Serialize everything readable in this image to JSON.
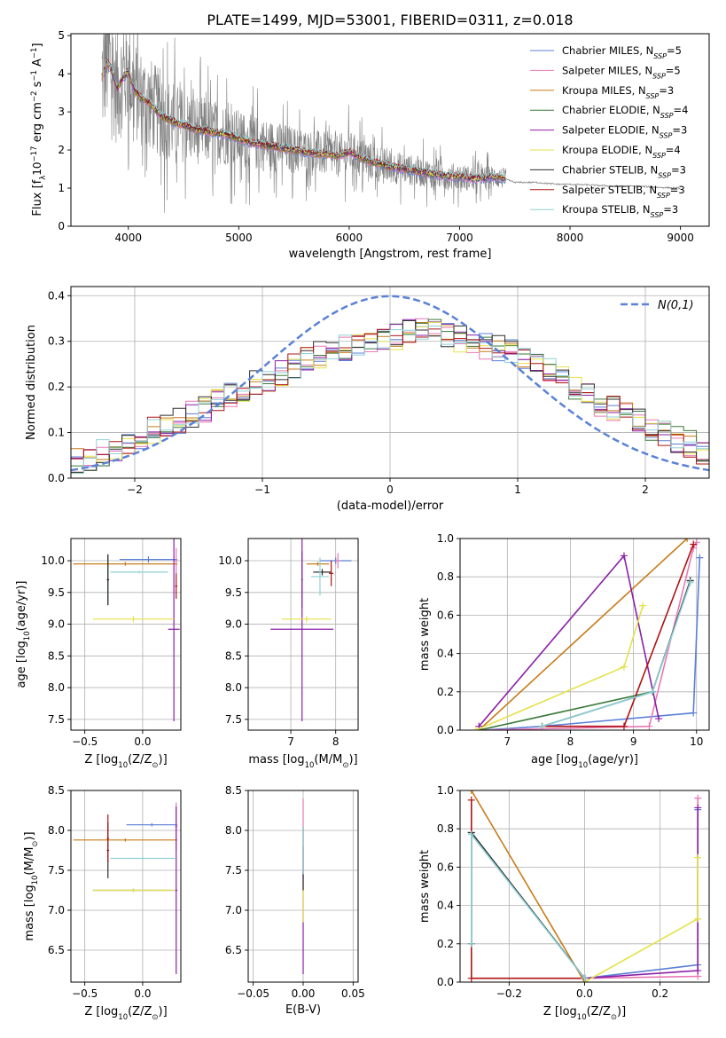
{
  "figure": {
    "title": "PLATE=1499, MJD=53001, FIBERID=0311, z=0.018"
  },
  "colors": {
    "Chabrier MILES": "#5b7fd6",
    "Salpeter MILES": "#e879b6",
    "Kroupa MILES": "#c77c1a",
    "Chabrier ELODIE": "#3a7a3a",
    "Salpeter ELODIE": "#8b1fa8",
    "Kroupa ELODIE": "#e5e14a",
    "Chabrier STELIB": "#2f2f2f",
    "Salpeter STELIB": "#b01212",
    "Kroupa STELIB": "#8fd1d6",
    "data": "#808080"
  },
  "chart_data": [
    {
      "id": "spectrum",
      "type": "line",
      "xlabel": "wavelength [Angstrom, rest frame]",
      "ylabel_parts": [
        "Flux [f",
        "λ",
        "10",
        "−17",
        " erg cm",
        "−2",
        " s",
        "−1",
        " A",
        "−1",
        "]"
      ],
      "xlim": [
        3480,
        9260
      ],
      "ylim": [
        0,
        5.05
      ],
      "xticks": [
        4000,
        5000,
        6000,
        7000,
        8000,
        9000
      ],
      "yticks": [
        0,
        1,
        2,
        3,
        4,
        5
      ],
      "legend": {
        "position": "top-right",
        "entries": [
          {
            "name": "Chabrier MILES",
            "n": "5"
          },
          {
            "name": "Salpeter MILES",
            "n": "5"
          },
          {
            "name": "Kroupa MILES",
            "n": "3"
          },
          {
            "name": "Chabrier ELODIE",
            "n": "4"
          },
          {
            "name": "Salpeter ELODIE",
            "n": "3"
          },
          {
            "name": "Kroupa ELODIE",
            "n": "4"
          },
          {
            "name": "Chabrier STELIB",
            "n": "3"
          },
          {
            "name": "Salpeter STELIB",
            "n": "3"
          },
          {
            "name": "Kroupa STELIB",
            "n": "3"
          }
        ]
      },
      "model_continuum": {
        "x": [
          3760,
          3800,
          3850,
          3900,
          3950,
          4000,
          4050,
          4100,
          4150,
          4200,
          4300,
          4400,
          4500,
          4600,
          4700,
          4800,
          4900,
          5000,
          5100,
          5200,
          5300,
          5400,
          5500,
          5600,
          5700,
          5800,
          5900,
          6000,
          6100,
          6200,
          6300,
          6400,
          6500,
          6600,
          6700,
          6800,
          6900,
          7000,
          7100,
          7200,
          7300,
          7400,
          7500,
          7600,
          7700,
          7800,
          7900,
          8000,
          8200,
          8400,
          8600,
          8800,
          9000
        ],
        "y": [
          3.9,
          4.3,
          4.1,
          3.6,
          3.9,
          4.05,
          3.6,
          3.4,
          3.3,
          3.2,
          2.9,
          2.75,
          2.65,
          2.55,
          2.5,
          2.45,
          2.4,
          2.3,
          2.2,
          2.15,
          2.1,
          2.05,
          2.0,
          1.95,
          1.9,
          1.9,
          1.85,
          1.95,
          1.8,
          1.7,
          1.6,
          1.55,
          1.5,
          1.45,
          1.4,
          1.35,
          1.3,
          1.3,
          1.25,
          1.25,
          1.3,
          1.25,
          1.15,
          1.15,
          1.15,
          1.12,
          1.1,
          1.1,
          1.08,
          1.05,
          1.05,
          1.02,
          1.0
        ]
      },
      "data_noise_envelope": {
        "x": [
          3760,
          4000,
          4500,
          5000,
          5500,
          6000,
          6500,
          7000,
          7420
        ],
        "amplitude": [
          2.5,
          2.0,
          1.4,
          1.1,
          0.9,
          0.8,
          0.6,
          0.5,
          0.4
        ]
      }
    },
    {
      "id": "residual-histogram",
      "type": "line",
      "xlabel": "(data-model)/error",
      "ylabel": "Normed distribution",
      "xlim": [
        -2.5,
        2.5
      ],
      "ylim": [
        0,
        0.42
      ],
      "xticks": [
        -2,
        -1,
        0,
        1,
        2
      ],
      "xticklabels": [
        "−2",
        "−1",
        "0",
        "1",
        "2"
      ],
      "yticks": [
        0.0,
        0.1,
        0.2,
        0.3,
        0.4
      ],
      "yticklabels": [
        "0.0",
        "0.1",
        "0.2",
        "0.3",
        "0.4"
      ],
      "legend": {
        "position": "top-right",
        "entry": "N(0,1)"
      },
      "bins": {
        "start": -2.5,
        "width": 0.1
      },
      "envelope": [
        0.035,
        0.045,
        0.055,
        0.06,
        0.075,
        0.09,
        0.105,
        0.11,
        0.125,
        0.14,
        0.15,
        0.165,
        0.18,
        0.195,
        0.21,
        0.22,
        0.23,
        0.245,
        0.26,
        0.27,
        0.28,
        0.285,
        0.29,
        0.295,
        0.3,
        0.31,
        0.32,
        0.33,
        0.325,
        0.315,
        0.305,
        0.3,
        0.29,
        0.285,
        0.275,
        0.265,
        0.25,
        0.235,
        0.22,
        0.2,
        0.185,
        0.165,
        0.155,
        0.145,
        0.13,
        0.11,
        0.1,
        0.085,
        0.075,
        0.06
      ]
    },
    {
      "id": "age-vs-Z",
      "type": "scatter",
      "xlabel_parts": [
        "Z [log",
        "10",
        "(Z/Z",
        "⊙",
        ")]"
      ],
      "ylabel_parts": [
        "age  [log",
        "10",
        "(age/yr)]"
      ],
      "xlim": [
        -0.62,
        0.33
      ],
      "ylim": [
        7.33,
        10.35
      ],
      "xticks": [
        -0.5,
        0.0
      ],
      "xticklabels": [
        "−0.5",
        "0.0"
      ],
      "yticks": [
        7.5,
        8.0,
        8.5,
        9.0,
        9.5,
        10.0
      ],
      "yticklabels": [
        "7.5",
        "8.0",
        "8.5",
        "9.0",
        "9.5",
        "10.0"
      ],
      "points": [
        {
          "series": "Chabrier MILES",
          "x": 0.05,
          "y": 10.02,
          "xerr": 0.25,
          "yerr": 0.05
        },
        {
          "series": "Salpeter MILES",
          "x": 0.29,
          "y": 10.0,
          "xerr": 0.01,
          "yerr": 0.2
        },
        {
          "series": "Kroupa MILES",
          "x": -0.15,
          "y": 9.95,
          "xerr": 0.45,
          "yerr": 0.03
        },
        {
          "series": "Chabrier ELODIE",
          "x": -0.3,
          "y": 9.7,
          "xerr": 0.01,
          "yerr": 0.4
        },
        {
          "series": "Salpeter ELODIE",
          "x": 0.27,
          "y": 8.92,
          "xerr": 0.05,
          "yerr": 1.45
        },
        {
          "series": "Kroupa ELODIE",
          "x": -0.08,
          "y": 9.08,
          "xerr": 0.35,
          "yerr": 0.05
        },
        {
          "series": "Chabrier STELIB",
          "x": -0.3,
          "y": 9.7,
          "xerr": 0.01,
          "yerr": 0.4
        },
        {
          "series": "Salpeter STELIB",
          "x": 0.29,
          "y": 9.6,
          "xerr": 0.01,
          "yerr": 0.2
        },
        {
          "series": "Kroupa STELIB",
          "x": -0.03,
          "y": 9.82,
          "xerr": 0.25,
          "yerr": 0.02
        }
      ]
    },
    {
      "id": "age-vs-mass",
      "type": "scatter",
      "xlabel_parts": [
        "mass [log",
        "10",
        "(M/M",
        "⊙",
        ")]"
      ],
      "xlim": [
        6.05,
        8.5
      ],
      "ylim": [
        7.33,
        10.35
      ],
      "xticks": [
        7,
        8
      ],
      "xticklabels": [
        "7",
        "8"
      ],
      "yticks": [
        7.5,
        8.0,
        8.5,
        9.0,
        9.5,
        10.0
      ],
      "yticklabels": [
        "7.5",
        "8.0",
        "8.5",
        "9.0",
        "9.5",
        "10.0"
      ],
      "points": [
        {
          "series": "Chabrier MILES",
          "x": 8.0,
          "y": 10.0,
          "xerr": 0.35,
          "yerr": 0.05
        },
        {
          "series": "Salpeter MILES",
          "x": 8.05,
          "y": 10.0,
          "xerr": 0.05,
          "yerr": 0.12
        },
        {
          "series": "Kroupa MILES",
          "x": 7.6,
          "y": 9.95,
          "xerr": 0.25,
          "yerr": 0.03
        },
        {
          "series": "Chabrier ELODIE",
          "x": 7.25,
          "y": 9.7,
          "xerr": 0.02,
          "yerr": 0.45
        },
        {
          "series": "Salpeter ELODIE",
          "x": 7.25,
          "y": 8.92,
          "xerr": 0.7,
          "yerr": 1.45
        },
        {
          "series": "Kroupa ELODIE",
          "x": 7.35,
          "y": 9.08,
          "xerr": 0.55,
          "yerr": 0.05
        },
        {
          "series": "Chabrier STELIB",
          "x": 7.7,
          "y": 9.82,
          "xerr": 0.2,
          "yerr": 0.05
        },
        {
          "series": "Salpeter STELIB",
          "x": 7.9,
          "y": 9.8,
          "xerr": 0.05,
          "yerr": 0.2
        },
        {
          "series": "Kroupa STELIB",
          "x": 7.65,
          "y": 9.75,
          "xerr": 0.2,
          "yerr": 0.3
        }
      ]
    },
    {
      "id": "mass-weight-vs-age",
      "type": "line",
      "xlabel_parts": [
        "age  [log",
        "10",
        "(age/yr)]"
      ],
      "ylabel": "mass weight",
      "xlim": [
        6.25,
        10.2
      ],
      "ylim": [
        0,
        1.0
      ],
      "xticks": [
        7,
        8,
        9,
        10
      ],
      "xticklabels": [
        "7",
        "8",
        "9",
        "10"
      ],
      "yticks": [
        0.0,
        0.2,
        0.4,
        0.6,
        0.8,
        1.0
      ],
      "yticklabels": [
        "0.0",
        "0.2",
        "0.4",
        "0.6",
        "0.8",
        "1.0"
      ],
      "series": [
        {
          "name": "Chabrier MILES",
          "x": [
            6.6,
            7.55,
            9.95,
            10.05
          ],
          "y": [
            0.0,
            0.02,
            0.09,
            0.9
          ]
        },
        {
          "name": "Salpeter MILES",
          "x": [
            6.6,
            9.25,
            9.95,
            10.0
          ],
          "y": [
            0.0,
            0.02,
            0.95,
            0.98
          ]
        },
        {
          "name": "Kroupa MILES",
          "x": [
            6.55,
            9.85
          ],
          "y": [
            0.0,
            1.0
          ]
        },
        {
          "name": "Chabrier ELODIE",
          "x": [
            6.55,
            9.3,
            9.9
          ],
          "y": [
            0.0,
            0.2,
            0.78
          ]
        },
        {
          "name": "Salpeter ELODIE",
          "x": [
            6.55,
            8.85,
            9.4
          ],
          "y": [
            0.02,
            0.91,
            0.06
          ]
        },
        {
          "name": "Kroupa ELODIE",
          "x": [
            6.5,
            8.85,
            9.15
          ],
          "y": [
            0.0,
            0.33,
            0.65
          ]
        },
        {
          "name": "Chabrier STELIB",
          "x": [
            7.55,
            9.3,
            9.9
          ],
          "y": [
            0.02,
            0.2,
            0.78
          ]
        },
        {
          "name": "Salpeter STELIB",
          "x": [
            7.55,
            8.85,
            9.95
          ],
          "y": [
            0.02,
            0.02,
            0.97
          ]
        },
        {
          "name": "Kroupa STELIB",
          "x": [
            7.55,
            9.3,
            9.9
          ],
          "y": [
            0.02,
            0.2,
            0.77
          ]
        }
      ]
    },
    {
      "id": "mass-vs-Z",
      "type": "scatter",
      "xlabel_parts": [
        "Z [log",
        "10",
        "(Z/Z",
        "⊙",
        ")]"
      ],
      "ylabel_parts": [
        "mass [log",
        "10",
        "(M/M",
        "⊙",
        ")]"
      ],
      "xlim": [
        -0.62,
        0.33
      ],
      "ylim": [
        6.1,
        8.5
      ],
      "xticks": [
        -0.5,
        0.0
      ],
      "xticklabels": [
        "−0.5",
        "0.0"
      ],
      "yticks": [
        6.5,
        7.0,
        7.5,
        8.0,
        8.5
      ],
      "yticklabels": [
        "6.5",
        "7.0",
        "7.5",
        "8.0",
        "8.5"
      ],
      "points": [
        {
          "series": "Chabrier MILES",
          "x": 0.08,
          "y": 8.07,
          "xerr": 0.22,
          "yerr": 0.02
        },
        {
          "series": "Salpeter MILES",
          "x": 0.29,
          "y": 8.05,
          "xerr": 0.01,
          "yerr": 0.3
        },
        {
          "series": "Kroupa MILES",
          "x": -0.15,
          "y": 7.88,
          "xerr": 0.45,
          "yerr": 0.02
        },
        {
          "series": "Chabrier ELODIE",
          "x": -0.08,
          "y": 7.25,
          "xerr": 0.35,
          "yerr": 0.02
        },
        {
          "series": "Salpeter ELODIE",
          "x": 0.29,
          "y": 7.25,
          "xerr": 0.01,
          "yerr": 1.05
        },
        {
          "series": "Kroupa ELODIE",
          "x": -0.08,
          "y": 7.25,
          "xerr": 0.35,
          "yerr": 0.02
        },
        {
          "series": "Chabrier STELIB",
          "x": -0.3,
          "y": 7.75,
          "xerr": 0.01,
          "yerr": 0.35
        },
        {
          "series": "Salpeter STELIB",
          "x": -0.3,
          "y": 7.9,
          "xerr": 0.01,
          "yerr": 0.3
        },
        {
          "series": "Kroupa STELIB",
          "x": 0.0,
          "y": 7.65,
          "xerr": 0.28,
          "yerr": 0.02
        }
      ]
    },
    {
      "id": "mass-vs-EBV",
      "type": "scatter",
      "xlabel": "E(B-V)",
      "xlim": [
        -0.055,
        0.055
      ],
      "ylim": [
        6.1,
        8.5
      ],
      "xticks": [
        -0.05,
        0.0,
        0.05
      ],
      "xticklabels": [
        "−0.05",
        "0.00",
        "0.05"
      ],
      "yticks": [
        6.5,
        7.0,
        7.5,
        8.0,
        8.5
      ],
      "yticklabels": [
        "6.5",
        "7.0",
        "7.5",
        "8.0",
        "8.5"
      ],
      "points": [
        {
          "series": "Salpeter ELODIE",
          "x": 0.0,
          "y": 7.0,
          "xerr": 0.0,
          "yerr": 0.8
        },
        {
          "series": "Salpeter MILES",
          "x": 0.0,
          "y": 7.9,
          "xerr": 0.0,
          "yerr": 0.5
        },
        {
          "series": "Kroupa ELODIE",
          "x": 0.0,
          "y": 7.1,
          "xerr": 0.0,
          "yerr": 0.25
        },
        {
          "series": "Chabrier STELIB",
          "x": 0.0,
          "y": 7.65,
          "xerr": 0.0,
          "yerr": 0.4
        },
        {
          "series": "Kroupa STELIB",
          "x": 0.0,
          "y": 7.75,
          "xerr": 0.0,
          "yerr": 0.3
        }
      ]
    },
    {
      "id": "mass-weight-vs-Z",
      "type": "line",
      "xlabel_parts": [
        "Z [log",
        "10",
        "(Z/Z",
        "⊙",
        ")]"
      ],
      "ylabel": "mass weight",
      "xlim": [
        -0.33,
        0.33
      ],
      "ylim": [
        0,
        1.0
      ],
      "xticks": [
        -0.2,
        0.0,
        0.2
      ],
      "xticklabels": [
        "−0.2",
        "0.0",
        "0.2"
      ],
      "yticks": [
        0.0,
        0.2,
        0.4,
        0.6,
        0.8,
        1.0
      ],
      "yticklabels": [
        "0.0",
        "0.2",
        "0.4",
        "0.6",
        "0.8",
        "1.0"
      ],
      "series": [
        {
          "name": "Chabrier MILES",
          "x": [
            0.0,
            0.3,
            0.3
          ],
          "y": [
            0.02,
            0.09,
            0.9
          ]
        },
        {
          "name": "Salpeter MILES",
          "x": [
            0.0,
            0.3,
            0.3
          ],
          "y": [
            0.02,
            0.03,
            0.96
          ]
        },
        {
          "name": "Kroupa MILES",
          "x": [
            -0.3,
            0.0
          ],
          "y": [
            1.0,
            0.0
          ]
        },
        {
          "name": "Chabrier ELODIE",
          "x": [
            -0.3,
            -0.3,
            0.0
          ],
          "y": [
            0.2,
            0.78,
            0.02
          ]
        },
        {
          "name": "Salpeter ELODIE",
          "x": [
            0.0,
            0.3,
            0.3
          ],
          "y": [
            0.02,
            0.06,
            0.91
          ]
        },
        {
          "name": "Kroupa ELODIE",
          "x": [
            0.0,
            0.3,
            0.3
          ],
          "y": [
            0.0,
            0.33,
            0.65
          ]
        },
        {
          "name": "Chabrier STELIB",
          "x": [
            -0.3,
            -0.3,
            0.0
          ],
          "y": [
            0.2,
            0.78,
            0.02
          ]
        },
        {
          "name": "Salpeter STELIB",
          "x": [
            -0.3,
            -0.3,
            0.0
          ],
          "y": [
            0.95,
            0.02,
            0.02
          ]
        },
        {
          "name": "Kroupa STELIB",
          "x": [
            -0.3,
            -0.3,
            0.0
          ],
          "y": [
            0.2,
            0.77,
            0.02
          ]
        }
      ]
    }
  ]
}
